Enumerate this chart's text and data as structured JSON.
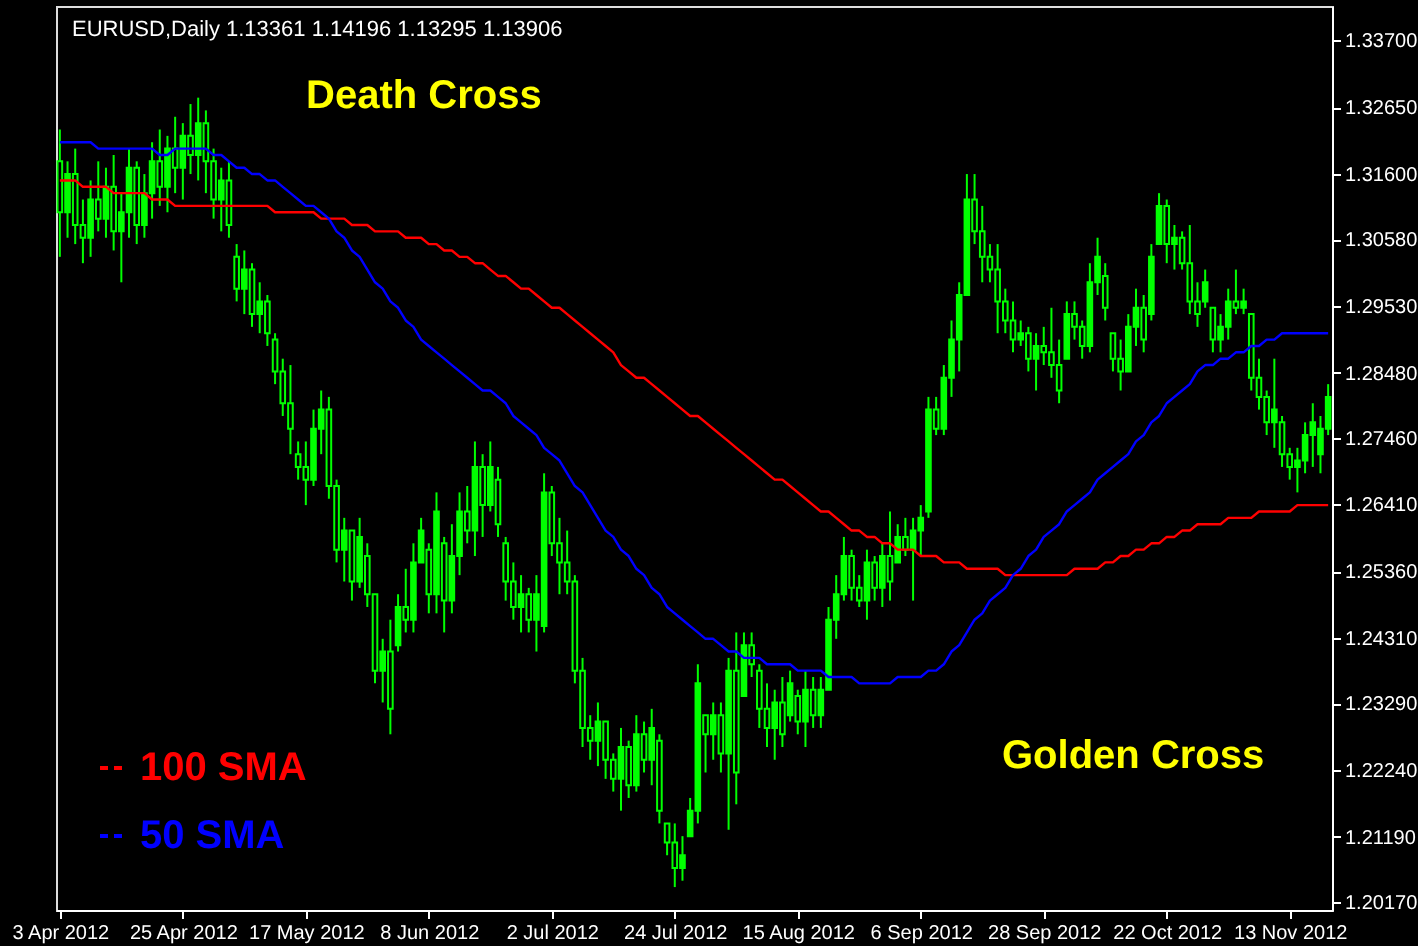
{
  "chart_data": {
    "type": "candlestick",
    "title": "EURUSD,Daily  1.13361 1.14196 1.13295 1.13906",
    "color": "#00ff00",
    "categories": [
      "3 Apr 2012",
      null,
      null,
      null,
      null,
      null,
      null,
      null,
      null,
      null,
      null,
      null,
      null,
      null,
      null,
      null,
      "25 Apr 2012",
      null,
      null,
      null,
      null,
      null,
      null,
      null,
      null,
      null,
      null,
      null,
      null,
      null,
      null,
      null,
      "17 May 2012",
      null,
      null,
      null,
      null,
      null,
      null,
      null,
      null,
      null,
      null,
      null,
      null,
      null,
      null,
      null,
      "8 Jun 2012",
      null,
      null,
      null,
      null,
      null,
      null,
      null,
      null,
      null,
      null,
      null,
      null,
      null,
      null,
      null,
      "2 Jul 2012",
      null,
      null,
      null,
      null,
      null,
      null,
      null,
      null,
      null,
      null,
      null,
      null,
      null,
      null,
      null,
      "24 Jul 2012",
      null,
      null,
      null,
      null,
      null,
      null,
      null,
      null,
      null,
      null,
      null,
      null,
      null,
      null,
      null,
      "15 Aug 2012",
      null,
      null,
      null,
      null,
      null,
      null,
      null,
      null,
      null,
      null,
      null,
      null,
      null,
      null,
      null,
      "6 Sep 2012",
      null,
      null,
      null,
      null,
      null,
      null,
      null,
      null,
      null,
      null,
      null,
      null,
      null,
      null,
      null,
      "28 Sep 2012",
      null,
      null,
      null,
      null,
      null,
      null,
      null,
      null,
      null,
      null,
      null,
      null,
      null,
      null,
      null,
      "22 Oct 2012",
      null,
      null,
      null,
      null,
      null,
      null,
      null,
      null,
      null,
      null,
      null,
      null,
      null,
      null,
      null,
      "13 Nov 2012",
      null,
      null,
      null,
      null,
      null
    ],
    "ohlc": [
      [
        1.318,
        1.323,
        1.303,
        1.31
      ],
      [
        1.31,
        1.318,
        1.306,
        1.316
      ],
      [
        1.316,
        1.32,
        1.305,
        1.308
      ],
      [
        1.308,
        1.312,
        1.302,
        1.306
      ],
      [
        1.306,
        1.315,
        1.303,
        1.312
      ],
      [
        1.312,
        1.318,
        1.307,
        1.309
      ],
      [
        1.309,
        1.317,
        1.306,
        1.314
      ],
      [
        1.314,
        1.319,
        1.304,
        1.307
      ],
      [
        1.307,
        1.313,
        1.299,
        1.31
      ],
      [
        1.31,
        1.32,
        1.306,
        1.317
      ],
      [
        1.317,
        1.318,
        1.305,
        1.308
      ],
      [
        1.308,
        1.316,
        1.306,
        1.313
      ],
      [
        1.313,
        1.321,
        1.309,
        1.318
      ],
      [
        1.318,
        1.323,
        1.311,
        1.314
      ],
      [
        1.314,
        1.322,
        1.31,
        1.32
      ],
      [
        1.32,
        1.325,
        1.313,
        1.317
      ],
      [
        1.317,
        1.324,
        1.312,
        1.322
      ],
      [
        1.322,
        1.327,
        1.316,
        1.319
      ],
      [
        1.319,
        1.328,
        1.315,
        1.324
      ],
      [
        1.324,
        1.326,
        1.313,
        1.318
      ],
      [
        1.318,
        1.32,
        1.309,
        1.312
      ],
      [
        1.312,
        1.317,
        1.307,
        1.315
      ],
      [
        1.315,
        1.318,
        1.306,
        1.308
      ],
      [
        1.303,
        1.305,
        1.296,
        1.298
      ],
      [
        1.298,
        1.304,
        1.294,
        1.301
      ],
      [
        1.301,
        1.302,
        1.292,
        1.294
      ],
      [
        1.294,
        1.299,
        1.291,
        1.296
      ],
      [
        1.296,
        1.297,
        1.289,
        1.291
      ],
      [
        1.29,
        1.291,
        1.283,
        1.285
      ],
      [
        1.285,
        1.287,
        1.278,
        1.28
      ],
      [
        1.28,
        1.286,
        1.272,
        1.276
      ],
      [
        1.272,
        1.274,
        1.268,
        1.27
      ],
      [
        1.27,
        1.274,
        1.264,
        1.268
      ],
      [
        1.268,
        1.279,
        1.267,
        1.276
      ],
      [
        1.276,
        1.282,
        1.272,
        1.279
      ],
      [
        1.279,
        1.281,
        1.265,
        1.267
      ],
      [
        1.267,
        1.268,
        1.255,
        1.257
      ],
      [
        1.257,
        1.262,
        1.252,
        1.26
      ],
      [
        1.26,
        1.26,
        1.249,
        1.252
      ],
      [
        1.252,
        1.262,
        1.251,
        1.259
      ],
      [
        1.256,
        1.258,
        1.248,
        1.25
      ],
      [
        1.25,
        1.25,
        1.236,
        1.238
      ],
      [
        1.238,
        1.243,
        1.233,
        1.241
      ],
      [
        1.241,
        1.246,
        1.228,
        1.232
      ],
      [
        1.242,
        1.25,
        1.241,
        1.248
      ],
      [
        1.248,
        1.254,
        1.244,
        1.246
      ],
      [
        1.246,
        1.258,
        1.244,
        1.255
      ],
      [
        1.255,
        1.262,
        1.255,
        1.26
      ],
      [
        1.257,
        1.258,
        1.247,
        1.25
      ],
      [
        1.25,
        1.266,
        1.247,
        1.263
      ],
      [
        1.258,
        1.259,
        1.244,
        1.249
      ],
      [
        1.249,
        1.261,
        1.247,
        1.256
      ],
      [
        1.256,
        1.266,
        1.253,
        1.263
      ],
      [
        1.263,
        1.267,
        1.258,
        1.26
      ],
      [
        1.26,
        1.274,
        1.256,
        1.27
      ],
      [
        1.27,
        1.272,
        1.259,
        1.264
      ],
      [
        1.264,
        1.274,
        1.263,
        1.27
      ],
      [
        1.268,
        1.27,
        1.259,
        1.261
      ],
      [
        1.258,
        1.259,
        1.249,
        1.252
      ],
      [
        1.252,
        1.255,
        1.246,
        1.248
      ],
      [
        1.248,
        1.253,
        1.244,
        1.25
      ],
      [
        1.25,
        1.251,
        1.244,
        1.246
      ],
      [
        1.246,
        1.253,
        1.241,
        1.25
      ],
      [
        1.245,
        1.269,
        1.244,
        1.266
      ],
      [
        1.266,
        1.267,
        1.256,
        1.258
      ],
      [
        1.258,
        1.262,
        1.25,
        1.255
      ],
      [
        1.255,
        1.26,
        1.25,
        1.252
      ],
      [
        1.252,
        1.253,
        1.236,
        1.238
      ],
      [
        1.238,
        1.24,
        1.226,
        1.229
      ],
      [
        1.229,
        1.231,
        1.224,
        1.227
      ],
      [
        1.227,
        1.233,
        1.223,
        1.23
      ],
      [
        1.23,
        1.23,
        1.221,
        1.224
      ],
      [
        1.224,
        1.225,
        1.219,
        1.221
      ],
      [
        1.221,
        1.229,
        1.216,
        1.226
      ],
      [
        1.226,
        1.227,
        1.218,
        1.22
      ],
      [
        1.22,
        1.231,
        1.219,
        1.228
      ],
      [
        1.228,
        1.23,
        1.222,
        1.224
      ],
      [
        1.224,
        1.232,
        1.22,
        1.229
      ],
      [
        1.227,
        1.228,
        1.214,
        1.216
      ],
      [
        1.214,
        1.214,
        1.209,
        1.211
      ],
      [
        1.211,
        1.214,
        1.204,
        1.207
      ],
      [
        1.207,
        1.212,
        1.205,
        1.209
      ],
      [
        1.212,
        1.218,
        1.212,
        1.216
      ],
      [
        1.216,
        1.239,
        1.214,
        1.236
      ],
      [
        1.231,
        1.231,
        1.222,
        1.228
      ],
      [
        1.228,
        1.233,
        1.224,
        1.231
      ],
      [
        1.231,
        1.233,
        1.222,
        1.225
      ],
      [
        1.225,
        1.24,
        1.213,
        1.238
      ],
      [
        1.238,
        1.244,
        1.217,
        1.222
      ],
      [
        1.234,
        1.244,
        1.234,
        1.242
      ],
      [
        1.242,
        1.244,
        1.237,
        1.239
      ],
      [
        1.238,
        1.239,
        1.229,
        1.232
      ],
      [
        1.232,
        1.236,
        1.226,
        1.229
      ],
      [
        1.229,
        1.235,
        1.224,
        1.233
      ],
      [
        1.233,
        1.237,
        1.226,
        1.228
      ],
      [
        1.231,
        1.238,
        1.23,
        1.236
      ],
      [
        1.234,
        1.235,
        1.228,
        1.23
      ],
      [
        1.23,
        1.238,
        1.226,
        1.235
      ],
      [
        1.235,
        1.237,
        1.229,
        1.231
      ],
      [
        1.231,
        1.237,
        1.229,
        1.235
      ],
      [
        1.235,
        1.248,
        1.235,
        1.246
      ],
      [
        1.246,
        1.253,
        1.243,
        1.25
      ],
      [
        1.25,
        1.259,
        1.249,
        1.256
      ],
      [
        1.256,
        1.257,
        1.249,
        1.251
      ],
      [
        1.251,
        1.253,
        1.248,
        1.249
      ],
      [
        1.249,
        1.257,
        1.246,
        1.255
      ],
      [
        1.255,
        1.256,
        1.249,
        1.251
      ],
      [
        1.251,
        1.258,
        1.248,
        1.256
      ],
      [
        1.256,
        1.263,
        1.249,
        1.252
      ],
      [
        1.255,
        1.261,
        1.255,
        1.259
      ],
      [
        1.259,
        1.262,
        1.256,
        1.257
      ],
      [
        1.257,
        1.262,
        1.249,
        1.26
      ],
      [
        1.26,
        1.264,
        1.256,
        1.262
      ],
      [
        1.263,
        1.281,
        1.262,
        1.279
      ],
      [
        1.279,
        1.281,
        1.275,
        1.276
      ],
      [
        1.276,
        1.286,
        1.275,
        1.284
      ],
      [
        1.284,
        1.293,
        1.281,
        1.29
      ],
      [
        1.29,
        1.299,
        1.285,
        1.297
      ],
      [
        1.297,
        1.316,
        1.297,
        1.312
      ],
      [
        1.312,
        1.316,
        1.305,
        1.307
      ],
      [
        1.307,
        1.311,
        1.299,
        1.303
      ],
      [
        1.303,
        1.305,
        1.299,
        1.301
      ],
      [
        1.301,
        1.305,
        1.291,
        1.296
      ],
      [
        1.296,
        1.298,
        1.291,
        1.293
      ],
      [
        1.293,
        1.296,
        1.288,
        1.29
      ],
      [
        1.29,
        1.293,
        1.289,
        1.291
      ],
      [
        1.291,
        1.292,
        1.285,
        1.287
      ],
      [
        1.287,
        1.291,
        1.282,
        1.289
      ],
      [
        1.289,
        1.292,
        1.286,
        1.288
      ],
      [
        1.288,
        1.295,
        1.284,
        1.286
      ],
      [
        1.286,
        1.29,
        1.28,
        1.282
      ],
      [
        1.287,
        1.296,
        1.287,
        1.294
      ],
      [
        1.294,
        1.296,
        1.29,
        1.292
      ],
      [
        1.292,
        1.293,
        1.287,
        1.289
      ],
      [
        1.289,
        1.302,
        1.288,
        1.299
      ],
      [
        1.299,
        1.306,
        1.297,
        1.303
      ],
      [
        1.3,
        1.302,
        1.293,
        1.295
      ],
      [
        1.291,
        1.291,
        1.285,
        1.287
      ],
      [
        1.287,
        1.29,
        1.282,
        1.285
      ],
      [
        1.285,
        1.294,
        1.285,
        1.292
      ],
      [
        1.292,
        1.298,
        1.289,
        1.295
      ],
      [
        1.295,
        1.297,
        1.288,
        1.29
      ],
      [
        1.294,
        1.305,
        1.293,
        1.303
      ],
      [
        1.305,
        1.313,
        1.305,
        1.311
      ],
      [
        1.311,
        1.312,
        1.302,
        1.305
      ],
      [
        1.305,
        1.308,
        1.301,
        1.306
      ],
      [
        1.306,
        1.307,
        1.301,
        1.302
      ],
      [
        1.302,
        1.308,
        1.294,
        1.296
      ],
      [
        1.296,
        1.299,
        1.292,
        1.294
      ],
      [
        1.296,
        1.301,
        1.295,
        1.299
      ],
      [
        1.295,
        1.295,
        1.288,
        1.29
      ],
      [
        1.29,
        1.294,
        1.288,
        1.292
      ],
      [
        1.292,
        1.298,
        1.29,
        1.296
      ],
      [
        1.296,
        1.301,
        1.294,
        1.295
      ],
      [
        1.295,
        1.298,
        1.294,
        1.296
      ],
      [
        1.294,
        1.294,
        1.282,
        1.284
      ],
      [
        1.284,
        1.287,
        1.279,
        1.281
      ],
      [
        1.281,
        1.282,
        1.275,
        1.277
      ],
      [
        1.277,
        1.287,
        1.273,
        1.279
      ],
      [
        1.277,
        1.278,
        1.27,
        1.272
      ],
      [
        1.272,
        1.273,
        1.268,
        1.27
      ],
      [
        1.27,
        1.273,
        1.266,
        1.271
      ],
      [
        1.271,
        1.277,
        1.269,
        1.275
      ],
      [
        1.275,
        1.28,
        1.27,
        1.277
      ],
      [
        1.272,
        1.278,
        1.269,
        1.276
      ],
      [
        1.276,
        1.283,
        1.275,
        1.281
      ]
    ],
    "series": [
      {
        "name": "100 SMA",
        "type": "line",
        "color": "#ff0000",
        "values": [
          1.315,
          1.315,
          1.315,
          1.314,
          1.314,
          1.314,
          1.314,
          1.313,
          1.313,
          1.313,
          1.313,
          1.313,
          1.312,
          1.312,
          1.312,
          1.311,
          1.311,
          1.311,
          1.311,
          1.311,
          1.311,
          1.311,
          1.311,
          1.311,
          1.311,
          1.311,
          1.311,
          1.311,
          1.31,
          1.31,
          1.31,
          1.31,
          1.31,
          1.31,
          1.309,
          1.309,
          1.309,
          1.309,
          1.308,
          1.308,
          1.308,
          1.307,
          1.307,
          1.307,
          1.307,
          1.306,
          1.306,
          1.306,
          1.305,
          1.305,
          1.304,
          1.304,
          1.303,
          1.303,
          1.302,
          1.302,
          1.301,
          1.3,
          1.3,
          1.299,
          1.298,
          1.298,
          1.297,
          1.296,
          1.295,
          1.295,
          1.294,
          1.293,
          1.292,
          1.291,
          1.29,
          1.289,
          1.288,
          1.286,
          1.285,
          1.284,
          1.284,
          1.283,
          1.282,
          1.281,
          1.28,
          1.279,
          1.278,
          1.278,
          1.277,
          1.276,
          1.275,
          1.274,
          1.273,
          1.272,
          1.271,
          1.27,
          1.269,
          1.268,
          1.268,
          1.267,
          1.266,
          1.265,
          1.264,
          1.263,
          1.263,
          1.262,
          1.261,
          1.26,
          1.26,
          1.259,
          1.259,
          1.258,
          1.258,
          1.257,
          1.257,
          1.257,
          1.256,
          1.256,
          1.256,
          1.255,
          1.255,
          1.255,
          1.254,
          1.254,
          1.254,
          1.254,
          1.254,
          1.253,
          1.253,
          1.253,
          1.253,
          1.253,
          1.253,
          1.253,
          1.253,
          1.253,
          1.254,
          1.254,
          1.254,
          1.254,
          1.255,
          1.255,
          1.256,
          1.256,
          1.257,
          1.257,
          1.258,
          1.258,
          1.259,
          1.259,
          1.26,
          1.26,
          1.261,
          1.261,
          1.261,
          1.261,
          1.262,
          1.262,
          1.262,
          1.262,
          1.263,
          1.263,
          1.263,
          1.263,
          1.263,
          1.264,
          1.264,
          1.264,
          1.264,
          1.264
        ]
      },
      {
        "name": "50 SMA",
        "type": "line",
        "color": "#0000ff",
        "values": [
          1.321,
          1.321,
          1.321,
          1.321,
          1.321,
          1.32,
          1.32,
          1.32,
          1.32,
          1.32,
          1.32,
          1.32,
          1.32,
          1.319,
          1.319,
          1.32,
          1.32,
          1.32,
          1.32,
          1.32,
          1.319,
          1.319,
          1.318,
          1.317,
          1.317,
          1.316,
          1.316,
          1.315,
          1.315,
          1.314,
          1.313,
          1.312,
          1.311,
          1.311,
          1.31,
          1.309,
          1.307,
          1.306,
          1.304,
          1.303,
          1.301,
          1.299,
          1.298,
          1.296,
          1.295,
          1.293,
          1.292,
          1.29,
          1.289,
          1.288,
          1.287,
          1.286,
          1.285,
          1.284,
          1.283,
          1.282,
          1.282,
          1.281,
          1.28,
          1.278,
          1.277,
          1.276,
          1.275,
          1.273,
          1.272,
          1.271,
          1.269,
          1.267,
          1.266,
          1.264,
          1.262,
          1.26,
          1.259,
          1.257,
          1.256,
          1.254,
          1.253,
          1.251,
          1.25,
          1.248,
          1.247,
          1.246,
          1.245,
          1.244,
          1.243,
          1.243,
          1.242,
          1.241,
          1.241,
          1.24,
          1.24,
          1.24,
          1.239,
          1.239,
          1.239,
          1.239,
          1.238,
          1.238,
          1.238,
          1.238,
          1.237,
          1.237,
          1.237,
          1.237,
          1.236,
          1.236,
          1.236,
          1.236,
          1.236,
          1.237,
          1.237,
          1.237,
          1.237,
          1.238,
          1.238,
          1.239,
          1.241,
          1.242,
          1.244,
          1.246,
          1.247,
          1.249,
          1.25,
          1.251,
          1.253,
          1.254,
          1.256,
          1.257,
          1.259,
          1.26,
          1.261,
          1.263,
          1.264,
          1.265,
          1.266,
          1.268,
          1.269,
          1.27,
          1.271,
          1.272,
          1.274,
          1.275,
          1.277,
          1.278,
          1.28,
          1.281,
          1.282,
          1.283,
          1.285,
          1.286,
          1.286,
          1.287,
          1.287,
          1.288,
          1.288,
          1.289,
          1.289,
          1.29,
          1.29,
          1.291,
          1.291,
          1.291,
          1.291,
          1.291,
          1.291,
          1.291
        ]
      }
    ],
    "ylim": [
      1.2004,
      1.3424
    ],
    "yticks": [
      {
        "value": 1.337,
        "label": "1.33700"
      },
      {
        "value": 1.3265,
        "label": "1.32650"
      },
      {
        "value": 1.316,
        "label": "1.31600"
      },
      {
        "value": 1.3058,
        "label": "1.30580"
      },
      {
        "value": 1.2953,
        "label": "1.29530"
      },
      {
        "value": 1.2848,
        "label": "1.28480"
      },
      {
        "value": 1.2746,
        "label": "1.27460"
      },
      {
        "value": 1.2641,
        "label": "1.26410"
      },
      {
        "value": 1.2536,
        "label": "1.25360"
      },
      {
        "value": 1.2431,
        "label": "1.24310"
      },
      {
        "value": 1.2329,
        "label": "1.23290"
      },
      {
        "value": 1.2224,
        "label": "1.22240"
      },
      {
        "value": 1.2119,
        "label": "1.21190"
      },
      {
        "value": 1.2017,
        "label": "1.20170"
      }
    ],
    "annotations": [
      "Death Cross",
      "Golden Cross"
    ],
    "legend": "bottom left",
    "grid": false
  }
}
